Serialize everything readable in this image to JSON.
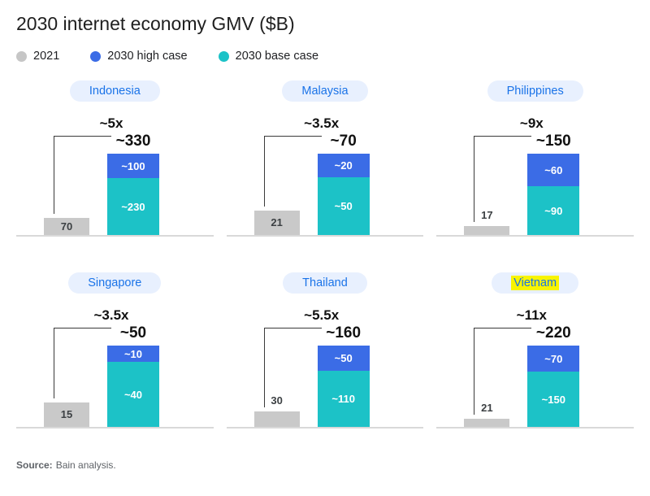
{
  "title": "2030 internet economy GMV ($B)",
  "legend": {
    "items": [
      {
        "label": "2021",
        "color": "#c6c6c6"
      },
      {
        "label": "2030 high case",
        "color": "#3b6ce6"
      },
      {
        "label": "2030 base case",
        "color": "#1cc2c7"
      }
    ]
  },
  "colors": {
    "gray-bar": "#c9c9c9",
    "blue": "#3b6ce6",
    "teal": "#1cc2c7",
    "pill-bg": "#e8f0fe",
    "pill-text": "#1a73e8",
    "highlight": "#f8f400"
  },
  "source": {
    "label": "Source:",
    "text": "Bain analysis."
  },
  "chart_data": {
    "type": "bar",
    "title": "2030 internet economy GMV ($B)",
    "unit": "$B",
    "legend": [
      "2021",
      "2030 high case",
      "2030 base case"
    ],
    "panels": [
      {
        "country": "Indonesia",
        "highlight": false,
        "multiplier": "~5x",
        "bar_2021": {
          "label": "70",
          "value": 70
        },
        "total": {
          "label": "~330",
          "value": 330
        },
        "high": {
          "label": "~100",
          "value": 100
        },
        "base": {
          "label": "~230",
          "value": 230
        }
      },
      {
        "country": "Malaysia",
        "highlight": false,
        "multiplier": "~3.5x",
        "bar_2021": {
          "label": "21",
          "value": 21
        },
        "total": {
          "label": "~70",
          "value": 70
        },
        "high": {
          "label": "~20",
          "value": 20
        },
        "base": {
          "label": "~50",
          "value": 50
        }
      },
      {
        "country": "Philippines",
        "highlight": false,
        "multiplier": "~9x",
        "bar_2021": {
          "label": "17",
          "value": 17
        },
        "total": {
          "label": "~150",
          "value": 150
        },
        "high": {
          "label": "~60",
          "value": 60
        },
        "base": {
          "label": "~90",
          "value": 90
        }
      },
      {
        "country": "Singapore",
        "highlight": false,
        "multiplier": "~3.5x",
        "bar_2021": {
          "label": "15",
          "value": 15
        },
        "total": {
          "label": "~50",
          "value": 50
        },
        "high": {
          "label": "~10",
          "value": 10
        },
        "base": {
          "label": "~40",
          "value": 40
        }
      },
      {
        "country": "Thailand",
        "highlight": false,
        "multiplier": "~5.5x",
        "bar_2021": {
          "label": "30",
          "value": 30
        },
        "total": {
          "label": "~160",
          "value": 160
        },
        "high": {
          "label": "~50",
          "value": 50
        },
        "base": {
          "label": "~110",
          "value": 110
        }
      },
      {
        "country": "Vietnam",
        "highlight": true,
        "multiplier": "~11x",
        "bar_2021": {
          "label": "21",
          "value": 21
        },
        "total": {
          "label": "~220",
          "value": 220
        },
        "high": {
          "label": "~70",
          "value": 70
        },
        "base": {
          "label": "~150",
          "value": 150
        }
      }
    ]
  }
}
